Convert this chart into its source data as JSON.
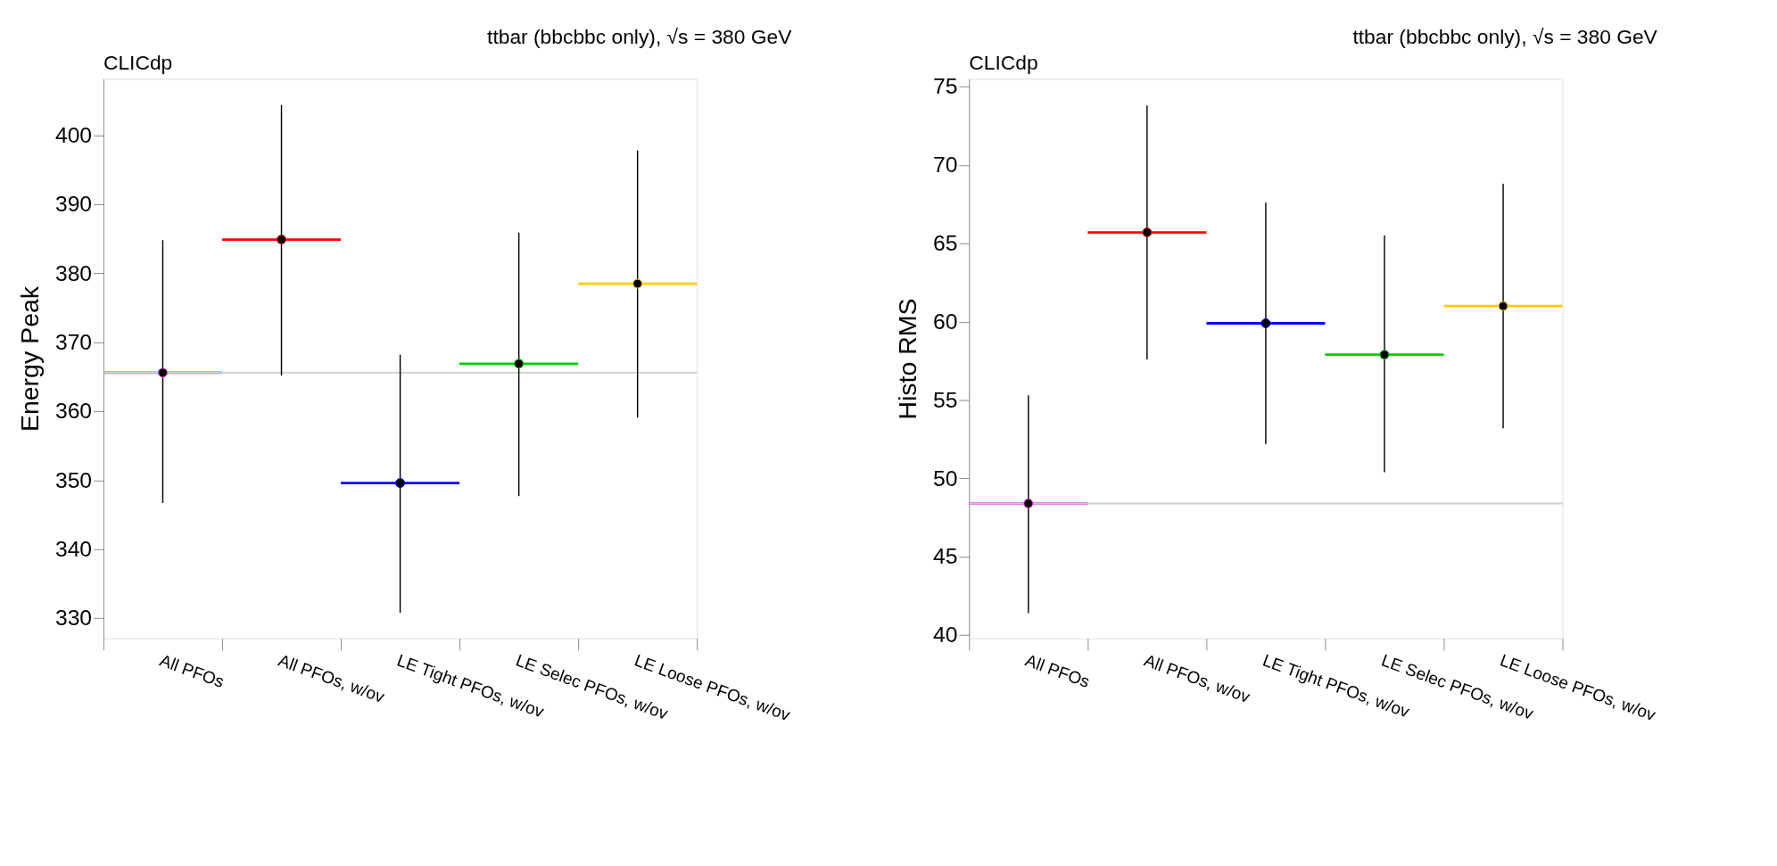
{
  "chart_data": [
    {
      "type": "scatter",
      "title": "ttbar (bbcbbc only), √s = 380 GeV",
      "ylabel": "Energy Peak",
      "annotations": [
        "CLICdp"
      ],
      "categories": [
        "All PFOs",
        "All PFOs, w/ov",
        "LE Tight PFOs, w/ov",
        "LE Selec PFOs, w/ov",
        "LE Loose PFOs, w/ov"
      ],
      "values": [
        365.6,
        384.9,
        349.6,
        366.9,
        378.5
      ],
      "errors": [
        [
          346.7,
          384.8
        ],
        [
          365.2,
          404.4
        ],
        [
          330.8,
          368.2
        ],
        [
          347.7,
          385.9
        ],
        [
          359.1,
          397.8
        ]
      ],
      "colors": [
        "#ff33ff",
        "#ff0000",
        "#0000ff",
        "#00cc00",
        "#ffcc00"
      ],
      "marker": "circle",
      "grid": false,
      "legend": false,
      "ylim": [
        327.1,
        408.2
      ],
      "yticks": [
        330,
        340,
        350,
        360,
        370,
        380,
        390,
        400
      ],
      "ref_lines": [
        {
          "axis": "y",
          "value": 365.6,
          "color": "#cccccc"
        }
      ]
    },
    {
      "type": "scatter",
      "title": "ttbar (bbcbbc only), √s = 380 GeV",
      "ylabel": "Histo RMS",
      "annotations": [
        "CLICdp"
      ],
      "categories": [
        "All PFOs",
        "All PFOs, w/ov",
        "LE Tight PFOs, w/ov",
        "LE Selec PFOs, w/ov",
        "LE Loose PFOs, w/ov"
      ],
      "values": [
        48.4,
        65.7,
        59.9,
        57.9,
        61.0
      ],
      "errors": [
        [
          41.4,
          55.3
        ],
        [
          57.6,
          73.8
        ],
        [
          52.2,
          67.6
        ],
        [
          50.4,
          65.5
        ],
        [
          53.2,
          68.8
        ]
      ],
      "colors": [
        "#ff33ff",
        "#ff0000",
        "#0000ff",
        "#00cc00",
        "#ffcc00"
      ],
      "marker": "circle",
      "grid": false,
      "legend": false,
      "ylim": [
        39.8,
        75.5
      ],
      "yticks": [
        40,
        45,
        50,
        55,
        60,
        65,
        70,
        75
      ],
      "ref_lines": [
        {
          "axis": "y",
          "value": 48.4,
          "color": "#cccccc"
        }
      ]
    }
  ]
}
